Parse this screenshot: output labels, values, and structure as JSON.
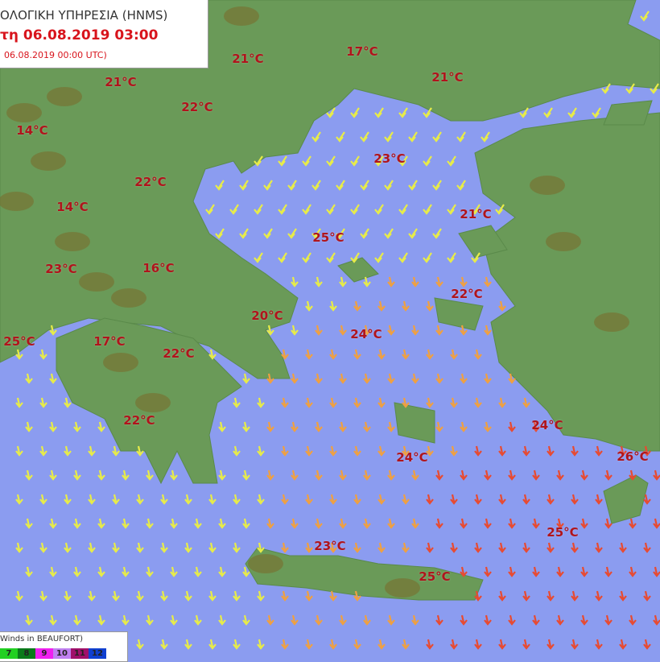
{
  "header": {
    "title": "ΟΛΟΓΙΚΗ ΥΠΗΡΕΣΙΑ (HNMS)",
    "forecast_time": "τη 06.08.2019 03:00",
    "base_time": "06.08.2019 00:00 UTC)"
  },
  "legend": {
    "title": "Winds in BEAUFORT)",
    "scale": [
      {
        "label": "7",
        "color": "#22d022"
      },
      {
        "label": "8",
        "color": "#0a7a1a"
      },
      {
        "label": "9",
        "color": "#f020f0"
      },
      {
        "label": "10",
        "color": "#c080f0"
      },
      {
        "label": "11",
        "color": "#a0106a"
      },
      {
        "label": "12",
        "color": "#1040d0"
      }
    ]
  },
  "colors": {
    "sea": "#8b9cf0",
    "land": "#6a9a58",
    "mountain": "#7a6a2a",
    "wind_low": "#e8ec48",
    "wind_mid": "#f0a040",
    "wind_high": "#e84a30",
    "temperature_text": "#b0141c"
  },
  "icons": {
    "night_clear": "moon-icon",
    "cloud": "cloud-icon",
    "wind": "wind-arrow-icon"
  },
  "temperatures": [
    "21°C",
    "17°C",
    "21°C",
    "21°C",
    "22°C",
    "14°C",
    "23°C",
    "22°C",
    "14°C",
    "21°C",
    "25°C",
    "23°C",
    "16°C",
    "22°C",
    "20°C",
    "24°C",
    "25°C",
    "17°C",
    "22°C",
    "24°C",
    "22°C",
    "24°C",
    "26°C",
    "25°C",
    "23°C",
    "25°C"
  ]
}
